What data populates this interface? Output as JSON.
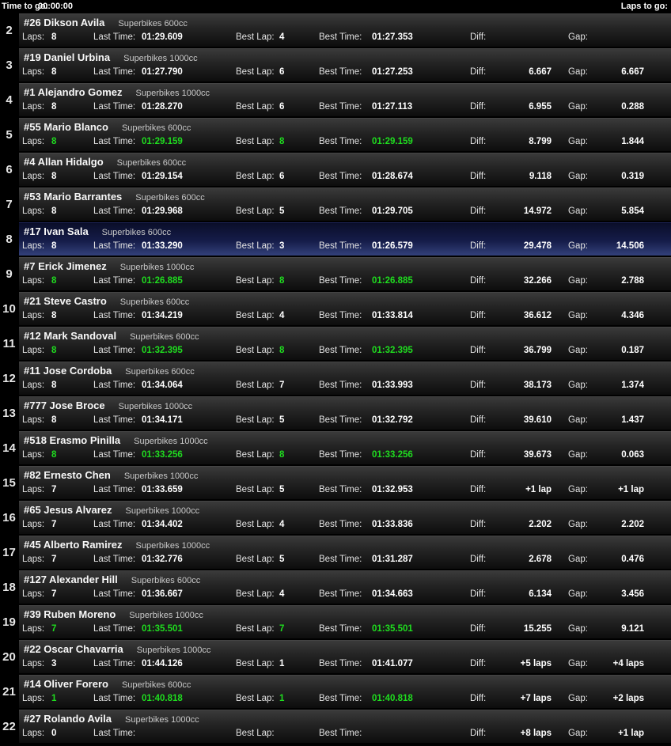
{
  "header": {
    "time_to_go_label": "Time to go:",
    "time_to_go_value": "00:00:00",
    "laps_to_go_label": "Laps to go:"
  },
  "labels": {
    "laps": "Laps:",
    "last_time": "Last Time:",
    "best_lap": "Best Lap:",
    "best_time": "Best Time:",
    "diff": "Diff:",
    "gap": "Gap:"
  },
  "colors": {
    "background": "#000000",
    "row_top": "#3a3a3a",
    "row_bottom": "#0d0d0d",
    "selected_row_top": "#0a0e29",
    "selected_row_bottom": "#33417b",
    "improvement_green": "#1fdd1f",
    "text_white": "#ffffff"
  },
  "rows": [
    {
      "pos": "2",
      "rider": "#26 Dikson Avila",
      "class": "Superbikes 600cc",
      "laps": "8",
      "last_time": "01:29.609",
      "best_lap": "4",
      "best_time": "01:27.353",
      "diff": "",
      "gap": "",
      "green": false,
      "selected": false
    },
    {
      "pos": "3",
      "rider": "#19 Daniel Urbina",
      "class": "Superbikes 1000cc",
      "laps": "8",
      "last_time": "01:27.790",
      "best_lap": "6",
      "best_time": "01:27.253",
      "diff": "6.667",
      "gap": "6.667",
      "green": false,
      "selected": false
    },
    {
      "pos": "4",
      "rider": "#1 Alejandro Gomez",
      "class": "Superbikes 1000cc",
      "laps": "8",
      "last_time": "01:28.270",
      "best_lap": "6",
      "best_time": "01:27.113",
      "diff": "6.955",
      "gap": "0.288",
      "green": false,
      "selected": false
    },
    {
      "pos": "5",
      "rider": "#55 Mario Blanco",
      "class": "Superbikes 600cc",
      "laps": "8",
      "last_time": "01:29.159",
      "best_lap": "8",
      "best_time": "01:29.159",
      "diff": "8.799",
      "gap": "1.844",
      "green": true,
      "selected": false
    },
    {
      "pos": "6",
      "rider": "#4 Allan Hidalgo",
      "class": "Superbikes 600cc",
      "laps": "8",
      "last_time": "01:29.154",
      "best_lap": "6",
      "best_time": "01:28.674",
      "diff": "9.118",
      "gap": "0.319",
      "green": false,
      "selected": false
    },
    {
      "pos": "7",
      "rider": "#53 Mario Barrantes",
      "class": "Superbikes 600cc",
      "laps": "8",
      "last_time": "01:29.968",
      "best_lap": "5",
      "best_time": "01:29.705",
      "diff": "14.972",
      "gap": "5.854",
      "green": false,
      "selected": false
    },
    {
      "pos": "8",
      "rider": "#17 Ivan Sala",
      "class": "Superbikes 600cc",
      "laps": "8",
      "last_time": "01:33.290",
      "best_lap": "3",
      "best_time": "01:26.579",
      "diff": "29.478",
      "gap": "14.506",
      "green": false,
      "selected": true
    },
    {
      "pos": "9",
      "rider": "#7 Erick Jimenez",
      "class": "Superbikes 1000cc",
      "laps": "8",
      "last_time": "01:26.885",
      "best_lap": "8",
      "best_time": "01:26.885",
      "diff": "32.266",
      "gap": "2.788",
      "green": true,
      "selected": false
    },
    {
      "pos": "10",
      "rider": "#21 Steve Castro",
      "class": "Superbikes 600cc",
      "laps": "8",
      "last_time": "01:34.219",
      "best_lap": "4",
      "best_time": "01:33.814",
      "diff": "36.612",
      "gap": "4.346",
      "green": false,
      "selected": false
    },
    {
      "pos": "11",
      "rider": "#12 Mark Sandoval",
      "class": "Superbikes 600cc",
      "laps": "8",
      "last_time": "01:32.395",
      "best_lap": "8",
      "best_time": "01:32.395",
      "diff": "36.799",
      "gap": "0.187",
      "green": true,
      "selected": false
    },
    {
      "pos": "12",
      "rider": "#11 Jose Cordoba",
      "class": "Superbikes 600cc",
      "laps": "8",
      "last_time": "01:34.064",
      "best_lap": "7",
      "best_time": "01:33.993",
      "diff": "38.173",
      "gap": "1.374",
      "green": false,
      "selected": false
    },
    {
      "pos": "13",
      "rider": "#777 Jose Broce",
      "class": "Superbikes 1000cc",
      "laps": "8",
      "last_time": "01:34.171",
      "best_lap": "5",
      "best_time": "01:32.792",
      "diff": "39.610",
      "gap": "1.437",
      "green": false,
      "selected": false
    },
    {
      "pos": "14",
      "rider": "#518 Erasmo Pinilla",
      "class": "Superbikes 1000cc",
      "laps": "8",
      "last_time": "01:33.256",
      "best_lap": "8",
      "best_time": "01:33.256",
      "diff": "39.673",
      "gap": "0.063",
      "green": true,
      "selected": false
    },
    {
      "pos": "15",
      "rider": "#82 Ernesto Chen",
      "class": "Superbikes 1000cc",
      "laps": "7",
      "last_time": "01:33.659",
      "best_lap": "5",
      "best_time": "01:32.953",
      "diff": "+1 lap",
      "gap": "+1 lap",
      "green": false,
      "selected": false
    },
    {
      "pos": "16",
      "rider": "#65 Jesus Alvarez",
      "class": "Superbikes 1000cc",
      "laps": "7",
      "last_time": "01:34.402",
      "best_lap": "4",
      "best_time": "01:33.836",
      "diff": "2.202",
      "gap": "2.202",
      "green": false,
      "selected": false
    },
    {
      "pos": "17",
      "rider": "#45 Alberto Ramirez",
      "class": "Superbikes 1000cc",
      "laps": "7",
      "last_time": "01:32.776",
      "best_lap": "5",
      "best_time": "01:31.287",
      "diff": "2.678",
      "gap": "0.476",
      "green": false,
      "selected": false
    },
    {
      "pos": "18",
      "rider": "#127 Alexander Hill",
      "class": "Superbikes 600cc",
      "laps": "7",
      "last_time": "01:36.667",
      "best_lap": "4",
      "best_time": "01:34.663",
      "diff": "6.134",
      "gap": "3.456",
      "green": false,
      "selected": false
    },
    {
      "pos": "19",
      "rider": "#39 Ruben Moreno",
      "class": "Superbikes 1000cc",
      "laps": "7",
      "last_time": "01:35.501",
      "best_lap": "7",
      "best_time": "01:35.501",
      "diff": "15.255",
      "gap": "9.121",
      "green": true,
      "selected": false
    },
    {
      "pos": "20",
      "rider": "#22 Oscar Chavarria",
      "class": "Superbikes 1000cc",
      "laps": "3",
      "last_time": "01:44.126",
      "best_lap": "1",
      "best_time": "01:41.077",
      "diff": "+5 laps",
      "gap": "+4 laps",
      "green": false,
      "selected": false
    },
    {
      "pos": "21",
      "rider": "#14 Oliver Forero",
      "class": "Superbikes 600cc",
      "laps": "1",
      "last_time": "01:40.818",
      "best_lap": "1",
      "best_time": "01:40.818",
      "diff": "+7 laps",
      "gap": "+2 laps",
      "green": true,
      "selected": false
    },
    {
      "pos": "22",
      "rider": "#27 Rolando Avila",
      "class": "Superbikes 1000cc",
      "laps": "0",
      "last_time": "",
      "best_lap": "",
      "best_time": "",
      "diff": "+8 laps",
      "gap": "+1 lap",
      "green": false,
      "selected": false
    }
  ]
}
